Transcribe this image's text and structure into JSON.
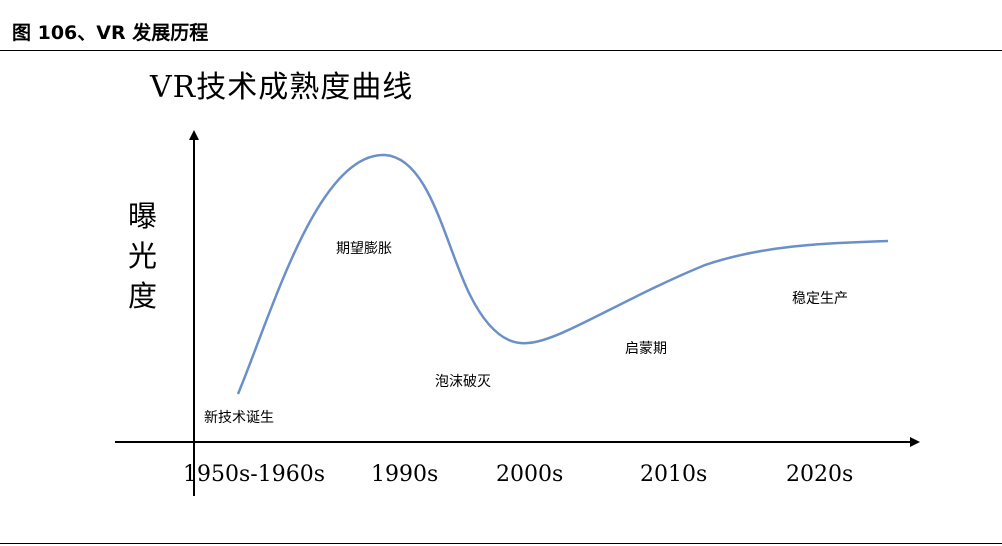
{
  "caption": "图 106、VR 发展历程",
  "chart_data": {
    "type": "line",
    "title": "VR技术成熟度曲线",
    "ylabel": "曝光度",
    "xlabel": "",
    "x_ticks": [
      "1950s-1960s",
      "1990s",
      "2000s",
      "2010s",
      "2020s"
    ],
    "stages": [
      "新技术诞生",
      "期望膨胀",
      "泡沫破灭",
      "启蒙期",
      "稳定生产"
    ],
    "grid": false,
    "legend": "none",
    "line_color": "#6b8fc7"
  }
}
